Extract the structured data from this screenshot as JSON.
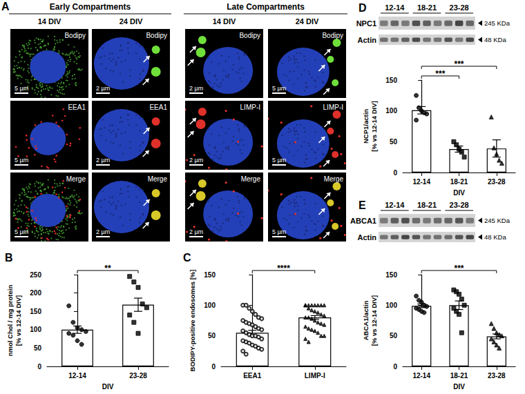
{
  "panel_a": {
    "letter": "A",
    "groups": [
      {
        "title": "Early Compartments",
        "columns": [
          {
            "title": "14 DIV",
            "labels": [
              "Bodipy",
              "EEA1",
              "Merge"
            ],
            "scale_bars": [
              "5 µm",
              "5 µm",
              "5 µm"
            ]
          },
          {
            "title": "24 DIV",
            "labels": [
              "Bodipy",
              "EEA1",
              "Merge"
            ],
            "scale_bars": [
              "2 µm",
              "2 µm",
              "2 µm"
            ]
          }
        ]
      },
      {
        "title": "Late Compartments",
        "columns": [
          {
            "title": "14 DIV",
            "labels": [
              "Bodipy",
              "LIMP-I",
              "Merge"
            ],
            "scale_bars": [
              "2 µm",
              "2 µm",
              "2 µm"
            ]
          },
          {
            "title": "24 DIV",
            "labels": [
              "Bodipy",
              "LIMP-I",
              "Merge"
            ],
            "scale_bars": [
              "5 µm",
              "5 µm",
              "5 µm"
            ]
          }
        ]
      }
    ]
  },
  "blots": [
    {
      "panel": "D",
      "groups": [
        "12-14",
        "18-21",
        "23-28"
      ],
      "rows": [
        {
          "label": "NPC1",
          "marker": "245 KDa"
        },
        {
          "label": "Actin",
          "marker": "48 KDa"
        }
      ]
    },
    {
      "panel": "E",
      "groups": [
        "12-14",
        "18-21",
        "23-28"
      ],
      "rows": [
        {
          "label": "ABCA1",
          "marker": "245 KDa"
        },
        {
          "label": "Actin",
          "marker": "48 KDa"
        }
      ]
    }
  ],
  "chart_data": [
    {
      "panel": "B",
      "type": "bar",
      "categories": [
        "12-14",
        "23-28"
      ],
      "values": [
        100,
        168
      ],
      "errors": [
        10,
        18
      ],
      "points": [
        {
          "marker": "circle",
          "values": [
            165,
            120,
            105,
            100,
            95,
            90,
            85,
            70,
            60
          ]
        },
        {
          "marker": "rect",
          "values": [
            245,
            230,
            215,
            170,
            160,
            140,
            120,
            90
          ]
        }
      ],
      "color": "#ffffff",
      "ylim": [
        0,
        250
      ],
      "yticks": [
        0,
        50,
        100,
        150,
        200,
        250
      ],
      "grid": false,
      "ylabel": "nmol Chol / mg protein\n[% vs 12-14 DIV]",
      "xlabel": "DIV",
      "annotations": [
        {
          "from": "12-14",
          "to": "23-28",
          "text": "**"
        }
      ]
    },
    {
      "panel": "C",
      "type": "bar",
      "categories": [
        "EEA1",
        "LIMP-I"
      ],
      "values": [
        55,
        80
      ],
      "errors": [
        4,
        3
      ],
      "points": [
        {
          "marker": "emptyCircle",
          "values": [
            100,
            100,
            95,
            90,
            85,
            80,
            78,
            75,
            72,
            70,
            68,
            65,
            62,
            60,
            58,
            55,
            52,
            50,
            50,
            48,
            45,
            42,
            40,
            38,
            35,
            33,
            30,
            28,
            25,
            20
          ]
        },
        {
          "marker": "triangle",
          "values": [
            100,
            100,
            100,
            100,
            100,
            100,
            100,
            100,
            95,
            92,
            90,
            88,
            85,
            83,
            80,
            80,
            78,
            75,
            72,
            70,
            68,
            65,
            62,
            60,
            58,
            55,
            50,
            50,
            45,
            40
          ]
        }
      ],
      "color": "#ffffff",
      "ylim": [
        0,
        150
      ],
      "yticks": [
        0,
        50,
        100,
        150
      ],
      "grid": false,
      "ylabel": "BODIPY-positive endosomes [%]",
      "annotations": [
        {
          "from": "EEA1",
          "to": "LIMP-I",
          "text": "****"
        }
      ]
    },
    {
      "type": "bar",
      "categories": [
        "12-14",
        "18-21",
        "23-28"
      ],
      "values": [
        101,
        38,
        39
      ],
      "errors": [
        6,
        5,
        14
      ],
      "points": [
        {
          "marker": "circle",
          "values": [
            125,
            105,
            100,
            97,
            95,
            85
          ]
        },
        {
          "marker": "rect",
          "values": [
            50,
            45,
            38,
            33,
            25
          ]
        },
        {
          "marker": "triangle",
          "values": [
            90,
            40,
            30,
            20,
            15
          ]
        }
      ],
      "color": "#ffffff",
      "ylim": [
        0,
        150
      ],
      "yticks": [
        0,
        50,
        100,
        150
      ],
      "grid": false,
      "ylabel": "NCP1/actin\n[% vs 12-14 DIV]",
      "xlabel": "DIV",
      "annotations": [
        {
          "from": "12-14",
          "to": "18-21",
          "text": "***"
        },
        {
          "from": "12-14",
          "to": "23-28",
          "text": "***"
        }
      ]
    },
    {
      "type": "bar",
      "categories": [
        "12-14",
        "18-21",
        "23-28"
      ],
      "values": [
        99,
        100,
        49
      ],
      "errors": [
        3,
        7,
        4
      ],
      "points": [
        {
          "marker": "circle",
          "values": [
            115,
            108,
            105,
            100,
            98,
            95,
            93,
            90,
            88
          ]
        },
        {
          "marker": "rect",
          "values": [
            125,
            122,
            118,
            110,
            100,
            95,
            90,
            85,
            55
          ]
        },
        {
          "marker": "triangle",
          "values": [
            70,
            62,
            55,
            52,
            50,
            45,
            40,
            35,
            30
          ]
        }
      ],
      "color": "#ffffff",
      "ylim": [
        0,
        150
      ],
      "yticks": [
        0,
        50,
        100,
        150
      ],
      "grid": false,
      "ylabel": "ABCA1/actin\n[% vs 12-14 DIV]",
      "xlabel": "DIV",
      "annotations": [
        {
          "from": "12-14",
          "to": "23-28",
          "text": "***"
        }
      ]
    }
  ]
}
